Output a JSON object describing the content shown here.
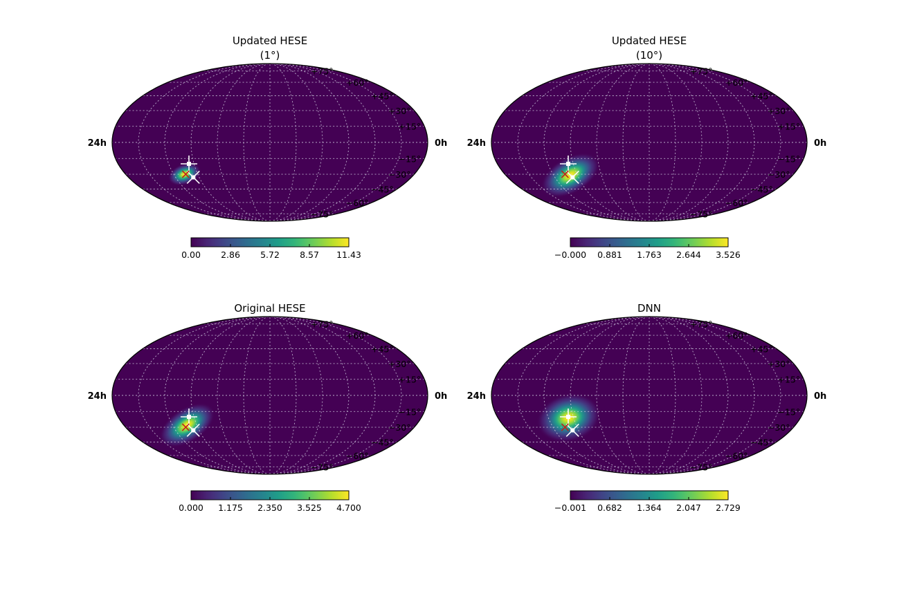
{
  "chart_data": [
    {
      "type": "heatmap",
      "projection": "mollweide",
      "title": [
        "Updated HESE",
        "(1°)"
      ],
      "ra_labels": [
        "24h",
        "0h"
      ],
      "dec_labels": [
        "+75°",
        "+60°",
        "+45°",
        "+30°",
        "+15°",
        "−15°",
        "−30°",
        "−45°",
        "−60°",
        "−75°"
      ],
      "colorbar": {
        "colormap": "viridis",
        "min": 0.0,
        "max": 11.43,
        "ticks": [
          "0.00",
          "2.86",
          "5.72",
          "8.57",
          "11.43"
        ]
      },
      "hotspot": {
        "ra_hours": 4.9,
        "dec_deg": -30,
        "sigma_ra_hours": 0.55,
        "sigma_dec_deg": 4,
        "tilt_deg": -20
      },
      "markers": {
        "white_plus": {
          "ra_hours": 5.6,
          "dec_deg": -20
        },
        "white_x": {
          "ra_hours": 5.5,
          "dec_deg": -33
        },
        "red_x": {
          "ra_hours": 5.0,
          "dec_deg": -30
        }
      },
      "grid": true
    },
    {
      "type": "heatmap",
      "projection": "mollweide",
      "title": [
        "Updated HESE",
        "(10°)"
      ],
      "ra_labels": [
        "24h",
        "0h"
      ],
      "dec_labels": [
        "+75°",
        "+60°",
        "+45°",
        "+30°",
        "+15°",
        "−15°",
        "−30°",
        "−45°",
        "−60°",
        "−75°"
      ],
      "colorbar": {
        "colormap": "viridis",
        "min": 0.0,
        "max": 3.526,
        "ticks": [
          "−0.000",
          "0.881",
          "1.763",
          "2.644",
          "3.526"
        ]
      },
      "hotspot": {
        "ra_hours": 5.4,
        "dec_deg": -31,
        "sigma_ra_hours": 1.05,
        "sigma_dec_deg": 7,
        "tilt_deg": -30
      },
      "markers": {
        "white_plus": {
          "ra_hours": 5.6,
          "dec_deg": -20
        },
        "white_x": {
          "ra_hours": 5.5,
          "dec_deg": -33
        },
        "red_x": {
          "ra_hours": 5.0,
          "dec_deg": -30
        }
      },
      "grid": true
    },
    {
      "type": "heatmap",
      "projection": "mollweide",
      "title": [
        "Original HESE"
      ],
      "ra_labels": [
        "24h",
        "0h"
      ],
      "dec_labels": [
        "+75°",
        "+60°",
        "+45°",
        "+30°",
        "+15°",
        "−15°",
        "−30°",
        "−45°",
        "−60°",
        "−75°"
      ],
      "colorbar": {
        "colormap": "viridis",
        "min": 0.0,
        "max": 4.7,
        "ticks": [
          "0.000",
          "1.175",
          "2.350",
          "3.525",
          "4.700"
        ]
      },
      "hotspot": {
        "ra_hours": 5.2,
        "dec_deg": -28,
        "sigma_ra_hours": 1.0,
        "sigma_dec_deg": 6.5,
        "tilt_deg": -33
      },
      "markers": {
        "white_plus": {
          "ra_hours": 5.6,
          "dec_deg": -20
        },
        "white_x": {
          "ra_hours": 5.5,
          "dec_deg": -33
        },
        "red_x": {
          "ra_hours": 5.0,
          "dec_deg": -30
        }
      },
      "grid": true
    },
    {
      "type": "heatmap",
      "projection": "mollweide",
      "title": [
        "DNN"
      ],
      "ra_labels": [
        "24h",
        "0h"
      ],
      "dec_labels": [
        "+75°",
        "+60°",
        "+45°",
        "+30°",
        "+15°",
        "−15°",
        "−30°",
        "−45°",
        "−60°",
        "−75°"
      ],
      "colorbar": {
        "colormap": "viridis",
        "min": -0.001,
        "max": 2.729,
        "ticks": [
          "−0.001",
          "0.682",
          "1.364",
          "2.047",
          "2.729"
        ]
      },
      "hotspot": {
        "ra_hours": 5.6,
        "dec_deg": -21,
        "sigma_ra_hours": 1.0,
        "sigma_dec_deg": 9,
        "tilt_deg": -15
      },
      "markers": {
        "white_plus": {
          "ra_hours": 5.6,
          "dec_deg": -20
        },
        "white_x": {
          "ra_hours": 5.5,
          "dec_deg": -33
        },
        "red_x": {
          "ra_hours": 5.0,
          "dec_deg": -30
        }
      },
      "grid": true
    }
  ]
}
